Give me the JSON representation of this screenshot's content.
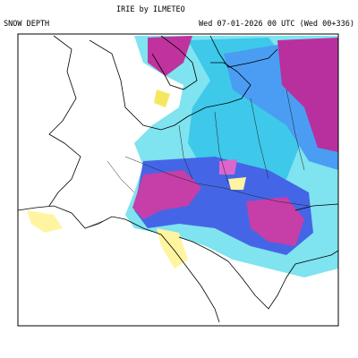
{
  "header": {
    "brand": "IRIE by ILMETEO",
    "field": "SNOW DEPTH",
    "valid": "Wed 07-01-2026 00 UTC (Wed 00+336)"
  }
}
